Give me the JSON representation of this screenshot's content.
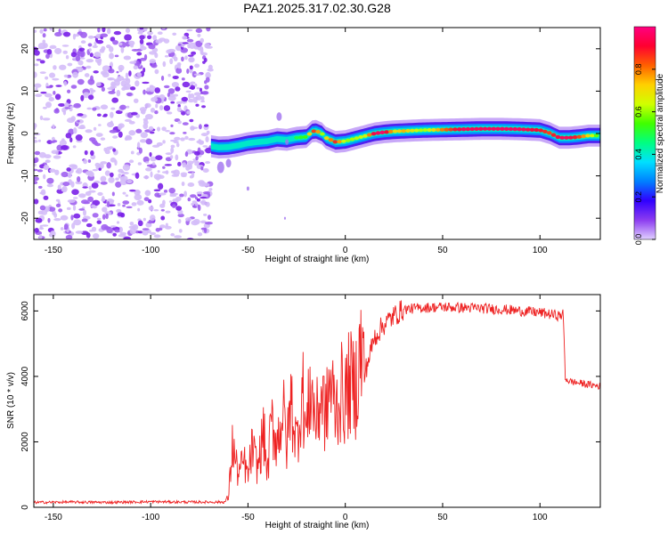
{
  "figure_title": "PAZ1.2025.317.02.30.G28",
  "chart_data": [
    {
      "type": "heatmap",
      "title": "PAZ1.2025.317.02.30.G28",
      "xlabel": "Height of straight line (km)",
      "ylabel": "Frequency (Hz)",
      "xlim": [
        -160,
        131
      ],
      "ylim": [
        -25,
        25
      ],
      "xticks": [
        -150,
        -100,
        -50,
        0,
        50,
        100
      ],
      "yticks": [
        -20,
        -10,
        0,
        10,
        20
      ],
      "colorbar": {
        "label": "Normalized spectral amplitude",
        "range": [
          0,
          1
        ],
        "ticks": [
          0.0,
          0.2,
          0.4,
          0.6,
          0.8
        ],
        "colormap": [
          "#e0d0ff",
          "#8c3cf0",
          "#3000ff",
          "#0080ff",
          "#00e0ff",
          "#00ff80",
          "#40ff00",
          "#d0ff00",
          "#ffd000",
          "#ff6000",
          "#ff0030",
          "#ff0080"
        ]
      },
      "noise_region": {
        "x_range": [
          -160,
          -69
        ],
        "freq_range": [
          -25,
          25
        ],
        "amplitude": "0.0-0.15"
      },
      "ridge": {
        "x": [
          -69,
          -65,
          -60,
          -55,
          -50,
          -45,
          -40,
          -35,
          -30,
          -25,
          -20,
          -17,
          -15,
          -12,
          -10,
          -5,
          0,
          5,
          10,
          15,
          20,
          25,
          30,
          40,
          50,
          60,
          70,
          80,
          90,
          100,
          105,
          110,
          115,
          120,
          125,
          131
        ],
        "freq": [
          -3,
          -3.3,
          -3.2,
          -2.8,
          -2.3,
          -2,
          -1.8,
          -1.3,
          -1.5,
          -1,
          -0.8,
          0.5,
          0.6,
          0,
          -1,
          -2,
          -1.8,
          -1.2,
          -0.6,
          0,
          0.3,
          0.5,
          0.6,
          0.8,
          0.9,
          1,
          1.1,
          1.1,
          1,
          0.8,
          0.1,
          -1,
          -1,
          -0.8,
          -0.5,
          -0.5
        ],
        "amplitude": [
          0.3,
          0.32,
          0.3,
          0.32,
          0.35,
          0.38,
          0.4,
          0.45,
          0.45,
          0.5,
          0.55,
          0.85,
          0.85,
          0.6,
          0.7,
          0.88,
          0.6,
          0.62,
          0.65,
          0.95,
          0.97,
          0.7,
          0.75,
          0.6,
          0.8,
          0.95,
          0.95,
          0.96,
          0.96,
          0.9,
          0.85,
          0.95,
          0.95,
          0.85,
          0.7,
          0.5
        ]
      }
    },
    {
      "type": "line",
      "xlabel": "Height of straight line (km)",
      "ylabel": "SNR (10 * v/v)",
      "xlim": [
        -160,
        131
      ],
      "ylim": [
        0,
        6500
      ],
      "xticks": [
        -150,
        -100,
        -50,
        0,
        50,
        100
      ],
      "yticks": [
        0,
        2000,
        4000,
        6000
      ],
      "series": [
        {
          "name": "SNR",
          "color": "#ee2222",
          "x": [
            -160,
            -140,
            -120,
            -100,
            -80,
            -62,
            -60,
            -58,
            -55,
            -52,
            -50,
            -48,
            -45,
            -42,
            -40,
            -38,
            -35,
            -32,
            -30,
            -28,
            -25,
            -22,
            -20,
            -18,
            -15,
            -12,
            -10,
            -8,
            -5,
            -2,
            0,
            2,
            5,
            8,
            10,
            15,
            20,
            25,
            30,
            40,
            50,
            60,
            70,
            80,
            90,
            100,
            105,
            110,
            112,
            113,
            115,
            120,
            125,
            131
          ],
          "y": [
            150,
            160,
            150,
            170,
            160,
            160,
            300,
            1900,
            1000,
            1400,
            900,
            1800,
            1200,
            2300,
            1000,
            2600,
            2000,
            3000,
            1800,
            3300,
            2000,
            3600,
            2200,
            3700,
            2600,
            3500,
            2700,
            3800,
            3000,
            3500,
            3300,
            3800,
            3600,
            4800,
            4100,
            5200,
            5600,
            5850,
            6050,
            6100,
            6120,
            6100,
            6080,
            6050,
            6000,
            5950,
            5900,
            5850,
            5900,
            3950,
            3850,
            3800,
            3750,
            3700
          ]
        }
      ]
    }
  ]
}
